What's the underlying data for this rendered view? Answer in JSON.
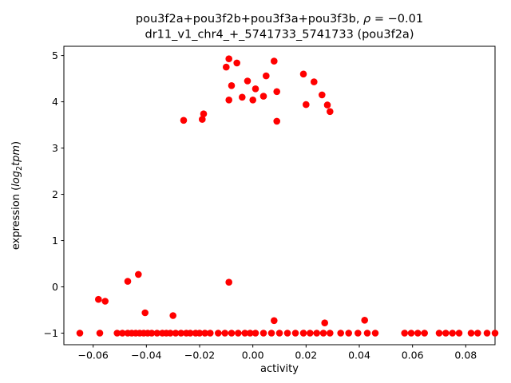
{
  "chart_data": {
    "type": "scatter",
    "title_line1_prefix": "pou3f2a+pou3f2b+pou3f3a+pou3f3b, ",
    "title_line1_rho": "ρ",
    "title_line1_rest": " = −0.01",
    "title_line2": "dr11_v1_chr4_+_5741733_5741733 (pou3f2a)",
    "xlabel": "activity",
    "ylabel": {
      "prefix": "expression (",
      "log": "log",
      "sub": "2",
      "var": "tpm",
      "suffix": ")"
    },
    "marker_color": "#ff0000",
    "grid": false,
    "legend": "none",
    "xlim": [
      -0.071,
      0.091
    ],
    "ylim": [
      -1.25,
      5.2
    ],
    "xticks": [
      -0.06,
      -0.04,
      -0.02,
      0.0,
      0.02,
      0.04,
      0.06,
      0.08
    ],
    "yticks": [
      -1,
      0,
      1,
      2,
      3,
      4,
      5
    ],
    "points": [
      [
        -0.026,
        3.6
      ],
      [
        -0.019,
        3.62
      ],
      [
        -0.0185,
        3.74
      ],
      [
        -0.009,
        4.93
      ],
      [
        -0.006,
        4.84
      ],
      [
        -0.01,
        4.75
      ],
      [
        -0.008,
        4.35
      ],
      [
        -0.009,
        4.04
      ],
      [
        -0.004,
        4.1
      ],
      [
        -0.002,
        4.45
      ],
      [
        0.0,
        4.04
      ],
      [
        0.001,
        4.28
      ],
      [
        0.004,
        4.12
      ],
      [
        0.005,
        4.56
      ],
      [
        0.008,
        4.88
      ],
      [
        0.009,
        4.22
      ],
      [
        0.009,
        3.58
      ],
      [
        0.019,
        4.6
      ],
      [
        0.02,
        3.94
      ],
      [
        0.023,
        4.43
      ],
      [
        0.026,
        4.15
      ],
      [
        0.028,
        3.93
      ],
      [
        0.029,
        3.79
      ],
      [
        -0.058,
        -0.27
      ],
      [
        -0.0555,
        -0.31
      ],
      [
        -0.047,
        0.12
      ],
      [
        -0.043,
        0.27
      ],
      [
        -0.0405,
        -0.56
      ],
      [
        -0.03,
        -0.62
      ],
      [
        -0.009,
        0.1
      ],
      [
        0.008,
        -0.73
      ],
      [
        0.027,
        -0.78
      ],
      [
        0.042,
        -0.72
      ],
      [
        -0.065,
        -1.0
      ],
      [
        -0.0575,
        -1.0
      ],
      [
        -0.051,
        -1.0
      ],
      [
        -0.049,
        -1.0
      ],
      [
        -0.047,
        -1.0
      ],
      [
        -0.0455,
        -1.0
      ],
      [
        -0.044,
        -1.0
      ],
      [
        -0.0425,
        -1.0
      ],
      [
        -0.041,
        -1.0
      ],
      [
        -0.0395,
        -1.0
      ],
      [
        -0.038,
        -1.0
      ],
      [
        -0.036,
        -1.0
      ],
      [
        -0.034,
        -1.0
      ],
      [
        -0.0325,
        -1.0
      ],
      [
        -0.031,
        -1.0
      ],
      [
        -0.029,
        -1.0
      ],
      [
        -0.027,
        -1.0
      ],
      [
        -0.025,
        -1.0
      ],
      [
        -0.0235,
        -1.0
      ],
      [
        -0.0215,
        -1.0
      ],
      [
        -0.02,
        -1.0
      ],
      [
        -0.018,
        -1.0
      ],
      [
        -0.016,
        -1.0
      ],
      [
        -0.013,
        -1.0
      ],
      [
        -0.0105,
        -1.0
      ],
      [
        -0.008,
        -1.0
      ],
      [
        -0.0055,
        -1.0
      ],
      [
        -0.003,
        -1.0
      ],
      [
        -0.001,
        -1.0
      ],
      [
        0.001,
        -1.0
      ],
      [
        0.004,
        -1.0
      ],
      [
        0.007,
        -1.0
      ],
      [
        0.01,
        -1.0
      ],
      [
        0.013,
        -1.0
      ],
      [
        0.016,
        -1.0
      ],
      [
        0.019,
        -1.0
      ],
      [
        0.0215,
        -1.0
      ],
      [
        0.024,
        -1.0
      ],
      [
        0.0265,
        -1.0
      ],
      [
        0.029,
        -1.0
      ],
      [
        0.033,
        -1.0
      ],
      [
        0.036,
        -1.0
      ],
      [
        0.0395,
        -1.0
      ],
      [
        0.043,
        -1.0
      ],
      [
        0.046,
        -1.0
      ],
      [
        0.057,
        -1.0
      ],
      [
        0.0595,
        -1.0
      ],
      [
        0.062,
        -1.0
      ],
      [
        0.0645,
        -1.0
      ],
      [
        0.07,
        -1.0
      ],
      [
        0.0725,
        -1.0
      ],
      [
        0.075,
        -1.0
      ],
      [
        0.0775,
        -1.0
      ],
      [
        0.082,
        -1.0
      ],
      [
        0.0845,
        -1.0
      ],
      [
        0.088,
        -1.0
      ],
      [
        0.091,
        -1.0
      ]
    ]
  }
}
